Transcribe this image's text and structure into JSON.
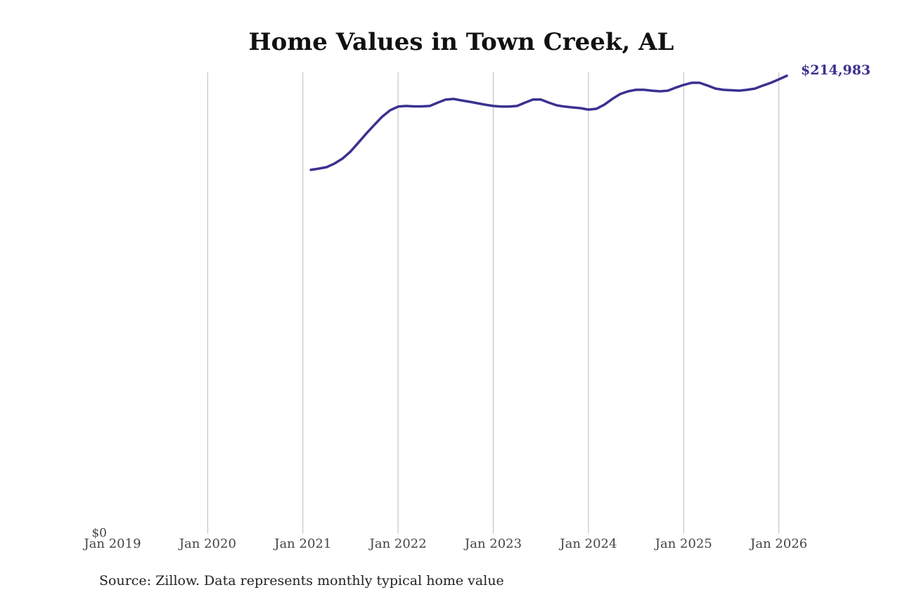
{
  "chart_data": {
    "type": "line",
    "title": "Home Values in Town Creek, AL",
    "source": "Source: Zillow. Data represents monthly typical home value",
    "end_label": "$214,983",
    "x": [
      "2021-02",
      "2021-03",
      "2021-04",
      "2021-05",
      "2021-06",
      "2021-07",
      "2021-08",
      "2021-09",
      "2021-10",
      "2021-11",
      "2021-12",
      "2022-01",
      "2022-02",
      "2022-03",
      "2022-04",
      "2022-05",
      "2022-06",
      "2022-07",
      "2022-08",
      "2022-09",
      "2022-10",
      "2022-11",
      "2022-12",
      "2023-01",
      "2023-02",
      "2023-03",
      "2023-04",
      "2023-05",
      "2023-06",
      "2023-07",
      "2023-08",
      "2023-09",
      "2023-10",
      "2023-11",
      "2023-12",
      "2024-01",
      "2024-02",
      "2024-03",
      "2024-04",
      "2024-05",
      "2024-06",
      "2024-07",
      "2024-08",
      "2024-09",
      "2024-10",
      "2024-11",
      "2024-12",
      "2025-01",
      "2025-02",
      "2025-03",
      "2025-04",
      "2025-05",
      "2025-06",
      "2025-07",
      "2025-08",
      "2025-09",
      "2025-10",
      "2025-11",
      "2025-12",
      "2026-01",
      "2026-02"
    ],
    "series": [
      {
        "name": "Home value",
        "color": "#3a3190",
        "values": [
          170800,
          171400,
          172100,
          173800,
          176100,
          179400,
          183600,
          187900,
          191900,
          195800,
          198800,
          200500,
          200800,
          200600,
          200600,
          200800,
          202400,
          203800,
          204100,
          203400,
          202800,
          202100,
          201400,
          200800,
          200500,
          200500,
          200800,
          202400,
          203800,
          203800,
          202400,
          201100,
          200500,
          200100,
          199800,
          199100,
          199500,
          201400,
          204100,
          206400,
          207700,
          208400,
          208400,
          208000,
          207700,
          208000,
          209400,
          210700,
          211700,
          211700,
          210400,
          209000,
          208400,
          208200,
          208000,
          208400,
          209000,
          210400,
          211700,
          213300,
          214983
        ]
      }
    ],
    "xlim": [
      "2019-01",
      "2026-02"
    ],
    "xticks": [
      {
        "value": "2019-01",
        "label": "Jan 2019"
      },
      {
        "value": "2020-01",
        "label": "Jan 2020"
      },
      {
        "value": "2021-01",
        "label": "Jan 2021"
      },
      {
        "value": "2022-01",
        "label": "Jan 2022"
      },
      {
        "value": "2023-01",
        "label": "Jan 2023"
      },
      {
        "value": "2024-01",
        "label": "Jan 2024"
      },
      {
        "value": "2025-01",
        "label": "Jan 2025"
      },
      {
        "value": "2026-01",
        "label": "Jan 2026"
      }
    ],
    "ylim": [
      0,
      216600
    ],
    "yticks": [
      {
        "value": 0,
        "label": "$0"
      }
    ],
    "grid": true
  }
}
